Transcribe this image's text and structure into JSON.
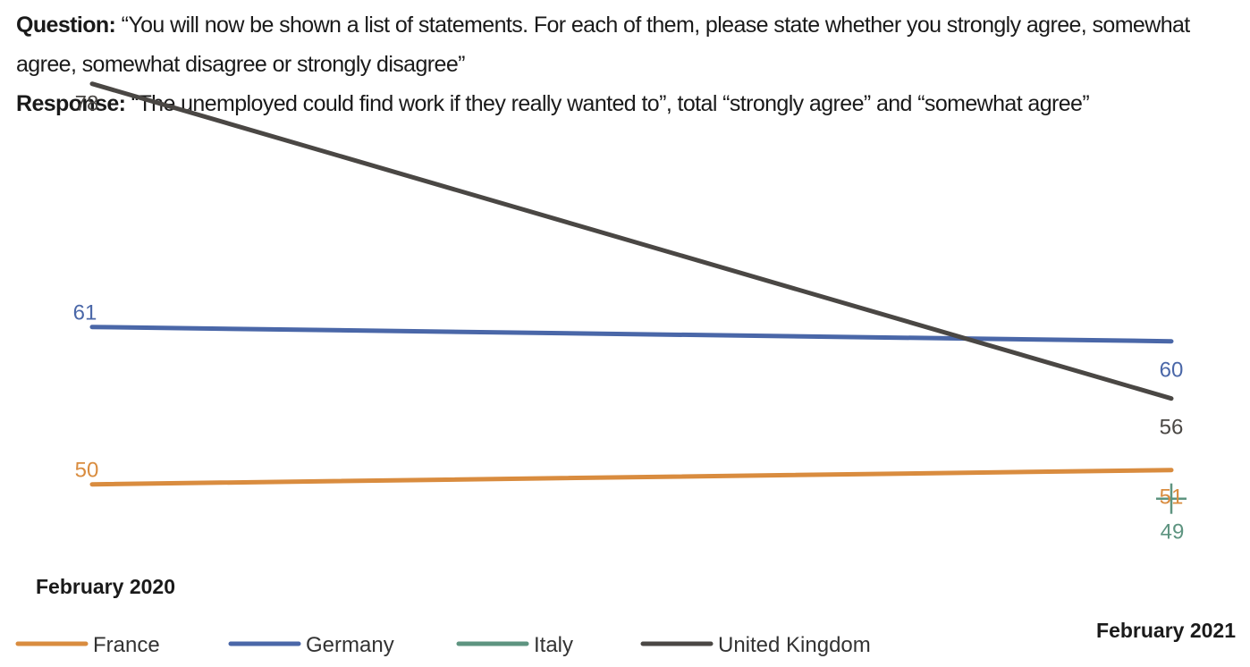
{
  "header": {
    "question_label": "Question:",
    "question_text": " “You will now be shown a list of statements. For each of them, please state whether you strongly agree, somewhat agree, somewhat disagree or strongly disagree”",
    "response_label": "Response:",
    "response_text": " “The unemployed could find work if they really wanted to”, total “strongly agree” and “somewhat agree”"
  },
  "chart_data": {
    "type": "line",
    "x": [
      "February 2020",
      "February 2021"
    ],
    "series": [
      {
        "name": "France",
        "values": [
          50,
          51
        ],
        "color": "#d98c3f"
      },
      {
        "name": "Germany",
        "values": [
          61,
          60
        ],
        "color": "#4a67a8"
      },
      {
        "name": "Italy",
        "values": [
          null,
          49
        ],
        "color": "#5e9480"
      },
      {
        "name": "United Kingdom",
        "values": [
          78,
          56
        ],
        "color": "#4a4744"
      }
    ],
    "ylim": [
      45,
      82
    ],
    "grid": false,
    "legend_position": "bottom-left"
  }
}
